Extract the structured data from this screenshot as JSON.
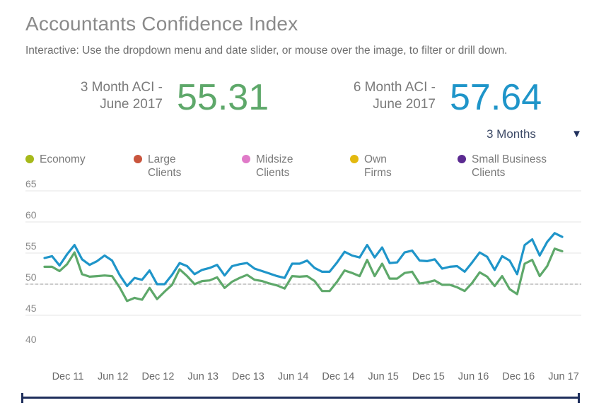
{
  "header": {
    "title": "Accountants Confidence Index",
    "subtitle": "Interactive: Use the dropdown menu and date slider, or mouse over the image, to filter or drill down."
  },
  "kpis": [
    {
      "label_line1": "3 Month ACI -",
      "label_line2": "June 2017",
      "value": "55.31",
      "color": "#5ea86a"
    },
    {
      "label_line1": "6 Month ACI -",
      "label_line2": "June 2017",
      "value": "57.64",
      "color": "#1f95c9"
    }
  ],
  "dropdown": {
    "selected": "3 Months",
    "arrow_icon": "triangle-down-icon"
  },
  "legend": [
    {
      "label": "Economy",
      "color": "#a6b91a"
    },
    {
      "label": "Large Clients",
      "color": "#c9553d"
    },
    {
      "label": "Midsize Clients",
      "color": "#e07ac8"
    },
    {
      "label": "Own Firms",
      "color": "#e3b90f"
    },
    {
      "label": "Small Business Clients",
      "color": "#5b2a91"
    }
  ],
  "chart_data": {
    "type": "line",
    "title": "Accountants Confidence Index",
    "xlabel": "",
    "ylabel": "",
    "ylim": [
      40,
      65
    ],
    "yticks": [
      40,
      45,
      50,
      55,
      60,
      65
    ],
    "xtick_labels": [
      "Dec 11",
      "Jun 12",
      "Dec 12",
      "Jun 13",
      "Dec 13",
      "Jun 14",
      "Dec 14",
      "Jun 15",
      "Dec 15",
      "Jun 16",
      "Dec 16",
      "Jun 17"
    ],
    "reference_line": 50,
    "grid": true,
    "series": [
      {
        "name": "6 Month ACI",
        "color": "#1f95c9",
        "values": [
          54.2,
          54.5,
          53.0,
          54.8,
          56.3,
          54.0,
          53.1,
          53.7,
          54.6,
          53.8,
          51.5,
          49.7,
          51.0,
          50.7,
          52.2,
          50.0,
          50.0,
          51.5,
          53.4,
          52.9,
          51.6,
          52.3,
          52.6,
          53.1,
          51.4,
          52.9,
          53.2,
          53.4,
          52.5,
          52.1,
          51.7,
          51.3,
          51.0,
          53.3,
          53.3,
          53.8,
          52.6,
          52.0,
          52.0,
          53.5,
          55.2,
          54.6,
          54.3,
          56.3,
          54.3,
          55.9,
          53.4,
          53.5,
          55.1,
          55.4,
          53.8,
          53.7,
          54.0,
          52.5,
          52.8,
          52.9,
          52.0,
          53.5,
          55.1,
          54.4,
          52.3,
          54.5,
          53.8,
          51.6,
          56.3,
          57.2,
          54.6,
          56.8,
          58.2,
          57.6
        ]
      },
      {
        "name": "3 Month ACI",
        "color": "#5ea86a",
        "values": [
          52.8,
          52.8,
          52.1,
          53.2,
          55.1,
          51.6,
          51.2,
          51.3,
          51.4,
          51.3,
          49.5,
          47.3,
          47.8,
          47.5,
          49.4,
          47.6,
          48.8,
          49.9,
          52.4,
          51.3,
          50.0,
          50.5,
          50.6,
          51.1,
          49.4,
          50.4,
          51.0,
          51.5,
          50.7,
          50.5,
          50.1,
          49.8,
          49.3,
          51.3,
          51.2,
          51.3,
          50.5,
          48.9,
          48.9,
          50.4,
          52.2,
          51.8,
          51.3,
          53.9,
          51.3,
          53.3,
          50.9,
          50.9,
          51.8,
          52.0,
          50.1,
          50.3,
          50.6,
          49.9,
          49.9,
          49.5,
          48.9,
          50.2,
          51.9,
          51.2,
          49.7,
          51.3,
          49.2,
          48.4,
          53.3,
          53.9,
          51.3,
          52.9,
          55.7,
          55.3
        ]
      }
    ]
  }
}
